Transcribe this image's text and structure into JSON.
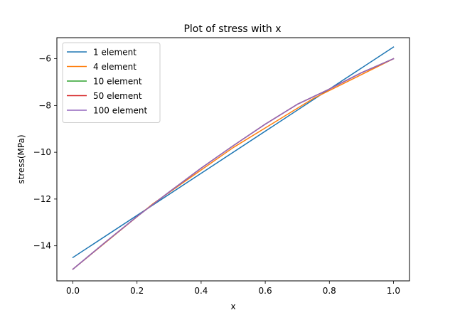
{
  "chart_data": {
    "type": "line",
    "title": "Plot of stress with x",
    "xlabel": "x",
    "ylabel": "stress(MPa)",
    "xlim": [
      -0.05,
      1.05
    ],
    "ylim": [
      -15.5,
      -5.1
    ],
    "xticks": [
      0.0,
      0.2,
      0.4,
      0.6,
      0.8,
      1.0
    ],
    "xtick_labels": [
      "0.0",
      "0.2",
      "0.4",
      "0.6",
      "0.8",
      "1.0"
    ],
    "yticks": [
      -14,
      -12,
      -10,
      -8,
      -6
    ],
    "ytick_labels": [
      "−14",
      "−12",
      "−10",
      "−8",
      "−6"
    ],
    "grid": false,
    "legend_position": "top-left",
    "series": [
      {
        "name": "1 element",
        "color": "#1f77b4",
        "x": [
          0.0,
          1.0
        ],
        "y": [
          -14.5,
          -5.5
        ]
      },
      {
        "name": "4 element",
        "color": "#ff7f0e",
        "x": [
          0.0,
          0.25,
          0.5,
          0.75,
          1.0
        ],
        "y": [
          -15.0,
          -12.2,
          -9.8,
          -7.7,
          -6.0
        ]
      },
      {
        "name": "10 element",
        "color": "#2ca02c",
        "x": [
          0.0,
          0.1,
          0.2,
          0.3,
          0.4,
          0.5,
          0.6,
          0.7,
          0.8,
          0.9,
          1.0
        ],
        "y": [
          -15.0,
          -13.86,
          -12.75,
          -11.7,
          -10.68,
          -9.72,
          -8.8,
          -7.95,
          -7.3,
          -6.6,
          -6.0
        ]
      },
      {
        "name": "50 element",
        "color": "#d62728",
        "x": [
          0.0,
          0.1,
          0.2,
          0.3,
          0.4,
          0.5,
          0.6,
          0.7,
          0.8,
          0.9,
          1.0
        ],
        "y": [
          -15.0,
          -13.86,
          -12.75,
          -11.7,
          -10.68,
          -9.72,
          -8.8,
          -7.95,
          -7.3,
          -6.6,
          -6.0
        ]
      },
      {
        "name": "100 element",
        "color": "#9467bd",
        "x": [
          0.0,
          0.1,
          0.2,
          0.3,
          0.4,
          0.5,
          0.6,
          0.7,
          0.8,
          0.9,
          1.0
        ],
        "y": [
          -15.0,
          -13.86,
          -12.75,
          -11.7,
          -10.68,
          -9.72,
          -8.8,
          -7.95,
          -7.3,
          -6.6,
          -6.0
        ]
      }
    ]
  }
}
